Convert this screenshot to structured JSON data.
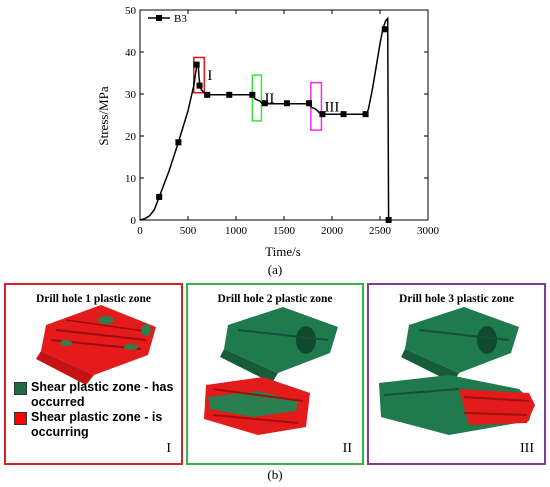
{
  "chart_data": {
    "type": "line",
    "xlabel": "Time/s",
    "ylabel": "Stress/MPa",
    "xlim": [
      0,
      3000
    ],
    "ylim": [
      0,
      50
    ],
    "xticks": [
      0,
      500,
      1000,
      1500,
      2000,
      2500,
      3000
    ],
    "yticks": [
      0,
      10,
      20,
      30,
      40,
      50
    ],
    "legend_position": "top-left",
    "series": [
      {
        "name": "B3",
        "color": "#000000",
        "curve": [
          [
            0,
            0
          ],
          [
            50,
            0.3
          ],
          [
            100,
            1
          ],
          [
            150,
            2.5
          ],
          [
            200,
            5.5
          ],
          [
            300,
            11.5
          ],
          [
            400,
            18.5
          ],
          [
            500,
            26
          ],
          [
            560,
            32
          ],
          [
            590,
            36.5
          ],
          [
            605,
            37.5
          ],
          [
            615,
            34
          ],
          [
            625,
            32
          ],
          [
            640,
            31
          ],
          [
            680,
            30
          ],
          [
            700,
            29.8
          ],
          [
            800,
            29.8
          ],
          [
            950,
            29.8
          ],
          [
            1100,
            29.8
          ],
          [
            1170,
            29.8
          ],
          [
            1200,
            28.8
          ],
          [
            1250,
            28.3
          ],
          [
            1270,
            27.8
          ],
          [
            1300,
            27.7
          ],
          [
            1500,
            27.7
          ],
          [
            1700,
            27.7
          ],
          [
            1760,
            27.7
          ],
          [
            1790,
            26.8
          ],
          [
            1830,
            26.4
          ],
          [
            1870,
            25.5
          ],
          [
            1900,
            25.2
          ],
          [
            2000,
            25.2
          ],
          [
            2200,
            25.2
          ],
          [
            2360,
            25.2
          ],
          [
            2380,
            26.5
          ],
          [
            2420,
            31
          ],
          [
            2460,
            36.5
          ],
          [
            2500,
            42
          ],
          [
            2530,
            45.5
          ],
          [
            2560,
            47.5
          ],
          [
            2580,
            48
          ],
          [
            2590,
            0
          ]
        ],
        "markers": [
          [
            200,
            5.5
          ],
          [
            400,
            18.5
          ],
          [
            590,
            37
          ],
          [
            620,
            32
          ],
          [
            700,
            29.8
          ],
          [
            930,
            29.8
          ],
          [
            1170,
            29.8
          ],
          [
            1300,
            27.8
          ],
          [
            1530,
            27.8
          ],
          [
            1760,
            27.8
          ],
          [
            1900,
            25.2
          ],
          [
            2120,
            25.2
          ],
          [
            2350,
            25.2
          ],
          [
            2550,
            45.4
          ],
          [
            2590,
            0
          ]
        ]
      }
    ],
    "regions": [
      {
        "label": "I",
        "color": "#e8161b",
        "x": [
          560,
          670
        ],
        "y": [
          30.3,
          38.7
        ]
      },
      {
        "label": "II",
        "color": "#33e833",
        "x": [
          1170,
          1265
        ],
        "y": [
          23.6,
          34.5
        ]
      },
      {
        "label": "III",
        "color": "#ee2ee8",
        "x": [
          1780,
          1890
        ],
        "y": [
          21.4,
          32.7
        ]
      }
    ]
  },
  "caption_a": "(a)",
  "caption_b": "(b)",
  "panels": [
    {
      "title": "Drill hole 1 plastic zone",
      "roman": "I",
      "border": "#d2232a"
    },
    {
      "title": "Drill hole 2 plastic zone",
      "roman": "II",
      "border": "#3db04b"
    },
    {
      "title": "Drill hole 3 plastic zone",
      "roman": "III",
      "border": "#7b3f9b"
    }
  ],
  "legend": {
    "green_label": "Shear plastic zone - has occurred",
    "red_label": "Shear plastic zone - is occurring",
    "green_color": "#1f6b45",
    "red_color": "#ff0000"
  }
}
